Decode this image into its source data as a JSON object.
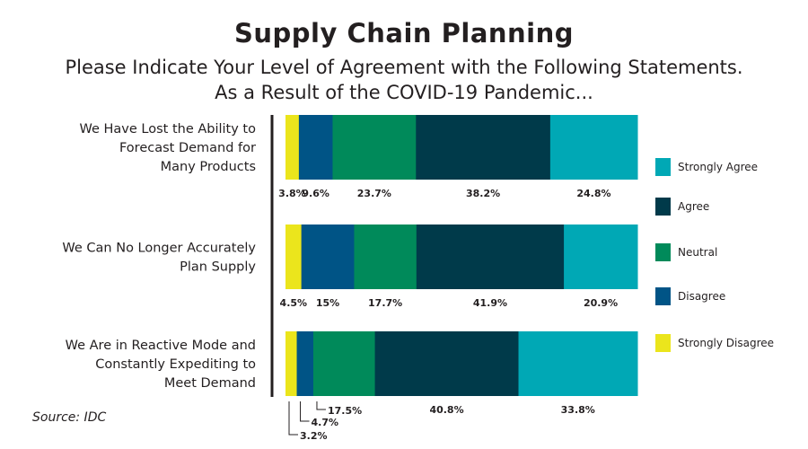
{
  "title": "Supply Chain Planning",
  "subtitle_line1": "Please Indicate Your Level of Agreement with the Following Statements.",
  "subtitle_line2": "As a Result of the COVID-19 Pandemic...",
  "source": "Source: IDC",
  "chart_data": {
    "type": "bar",
    "orientation": "horizontal",
    "stacked": true,
    "normalized_100": true,
    "categories": [
      [
        "We Have Lost the Ability to",
        "Forecast Demand for",
        "Many Products"
      ],
      [
        "We Can No Longer Accurately",
        "Plan Supply"
      ],
      [
        "We Are in Reactive Mode and",
        "Constantly Expediting to",
        "Meet Demand"
      ]
    ],
    "series": [
      {
        "name": "Strongly Disagree",
        "color": "#ebe51c",
        "values": [
          3.8,
          4.5,
          3.2
        ],
        "labels": [
          "3.8%",
          "4.5%",
          "3.2%"
        ]
      },
      {
        "name": "Disagree",
        "color": "#005486",
        "values": [
          9.6,
          15,
          4.7
        ],
        "labels": [
          "9.6%",
          "15%",
          "4.7%"
        ]
      },
      {
        "name": "Neutral",
        "color": "#008a5a",
        "values": [
          23.7,
          17.7,
          17.5
        ],
        "labels": [
          "23.7%",
          "17.7%",
          "17.5%"
        ]
      },
      {
        "name": "Agree",
        "color": "#003a4a",
        "values": [
          38.2,
          41.9,
          40.8
        ],
        "labels": [
          "38.2%",
          "41.9%",
          "40.8%"
        ]
      },
      {
        "name": "Strongly Agree",
        "color": "#00a8b5",
        "values": [
          24.8,
          20.9,
          33.8
        ],
        "labels": [
          "24.8%",
          "20.9%",
          "33.8%"
        ]
      }
    ],
    "legend_order": [
      "Strongly Agree",
      "Agree",
      "Neutral",
      "Disagree",
      "Strongly Disagree"
    ],
    "legend_position": "right",
    "grid": false
  }
}
